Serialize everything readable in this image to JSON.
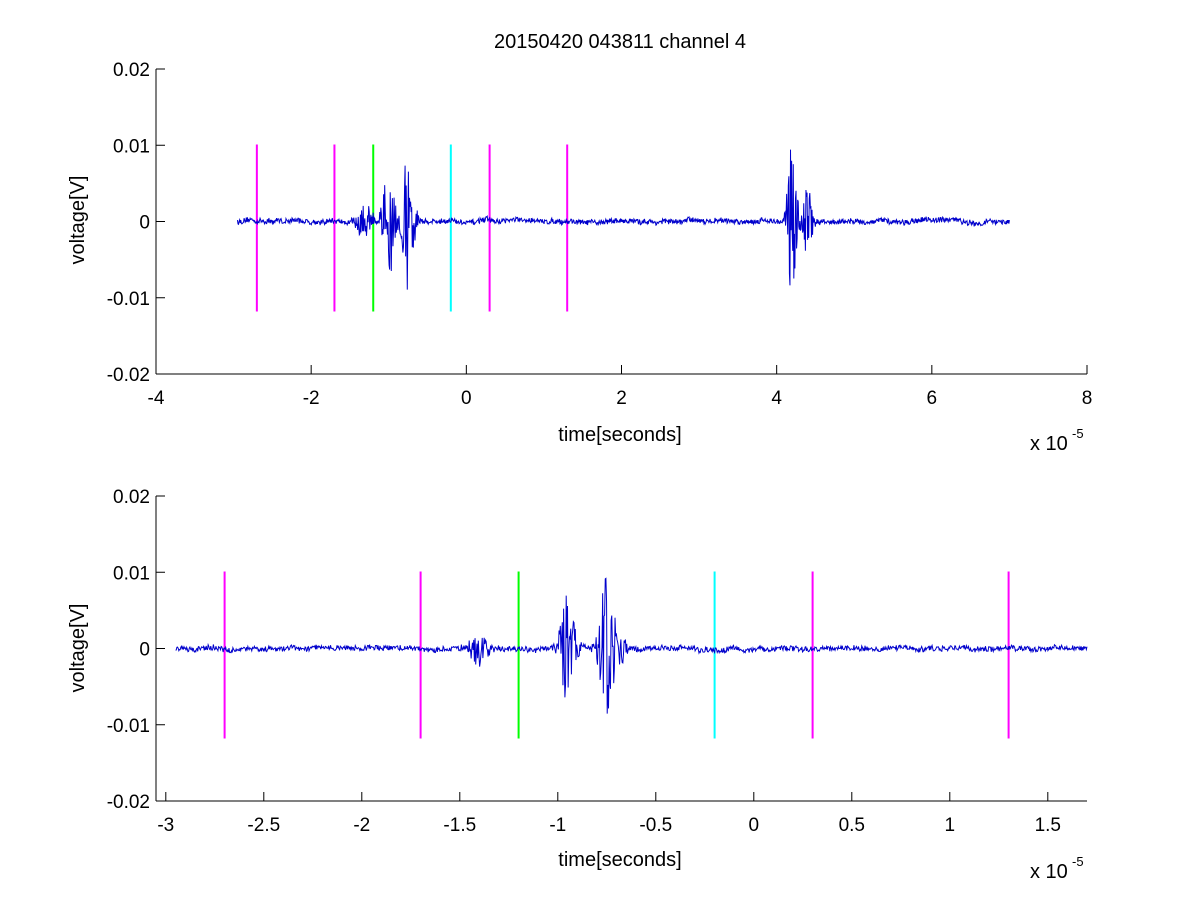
{
  "chart_data": [
    {
      "type": "line",
      "title": "20150420 043811 channel 4",
      "xlabel": "time[seconds]",
      "ylabel": "voltage[V]",
      "x_exponent_label": "x 10",
      "x_exponent": "-5",
      "xlim": [
        -4,
        8
      ],
      "ylim": [
        -0.02,
        0.02
      ],
      "x_ticks": [
        -4,
        -2,
        0,
        2,
        4,
        6,
        8
      ],
      "x_tick_labels": [
        "-4",
        "-2",
        "0",
        "2",
        "4",
        "6",
        "8"
      ],
      "y_ticks": [
        -0.02,
        -0.01,
        0,
        0.01,
        0.02
      ],
      "y_tick_labels": [
        "-0.02",
        "-0.01",
        "0",
        "0.01",
        "0.02"
      ],
      "grid": false,
      "signal": {
        "color": "#0000cc",
        "x_range": [
          -2.95,
          7.0
        ],
        "bursts": [
          {
            "center": -1.3,
            "amplitude": 0.002,
            "width": 0.12
          },
          {
            "center": -1.0,
            "amplitude": 0.007,
            "width": 0.08
          },
          {
            "center": -0.75,
            "amplitude": 0.009,
            "width": 0.08
          },
          {
            "center": 4.2,
            "amplitude": 0.01,
            "width": 0.07
          },
          {
            "center": 4.4,
            "amplitude": 0.005,
            "width": 0.06
          }
        ]
      },
      "markers": [
        {
          "x": -2.7,
          "color": "#ff00ff"
        },
        {
          "x": -1.7,
          "color": "#ff00ff"
        },
        {
          "x": -1.2,
          "color": "#00ff00"
        },
        {
          "x": -0.2,
          "color": "#00ffff"
        },
        {
          "x": 0.3,
          "color": "#ff00ff"
        },
        {
          "x": 1.3,
          "color": "#ff00ff"
        }
      ],
      "marker_y_range": [
        -0.0118,
        0.0101
      ]
    },
    {
      "type": "line",
      "title": "",
      "xlabel": "time[seconds]",
      "ylabel": "voltage[V]",
      "x_exponent_label": "x 10",
      "x_exponent": "-5",
      "xlim": [
        -3.05,
        1.7
      ],
      "ylim": [
        -0.02,
        0.02
      ],
      "x_ticks": [
        -3,
        -2.5,
        -2,
        -1.5,
        -1,
        -0.5,
        0,
        0.5,
        1,
        1.5
      ],
      "x_tick_labels": [
        "-3",
        "-2.5",
        "-2",
        "-1.5",
        "-1",
        "-0.5",
        "0",
        "0.5",
        "1",
        "1.5"
      ],
      "y_ticks": [
        -0.02,
        -0.01,
        0,
        0.01,
        0.02
      ],
      "y_tick_labels": [
        "-0.02",
        "-0.01",
        "0",
        "0.01",
        "0.02"
      ],
      "grid": false,
      "signal": {
        "color": "#0000cc",
        "x_range": [
          -2.95,
          1.7
        ],
        "bursts": [
          {
            "center": -1.4,
            "amplitude": 0.002,
            "width": 0.06
          },
          {
            "center": -0.95,
            "amplitude": 0.007,
            "width": 0.04
          },
          {
            "center": -0.75,
            "amplitude": 0.009,
            "width": 0.04
          },
          {
            "center": -0.68,
            "amplitude": 0.002,
            "width": 0.03
          }
        ]
      },
      "markers": [
        {
          "x": -2.7,
          "color": "#ff00ff"
        },
        {
          "x": -1.7,
          "color": "#ff00ff"
        },
        {
          "x": -1.2,
          "color": "#00ff00"
        },
        {
          "x": -0.2,
          "color": "#00ffff"
        },
        {
          "x": 0.3,
          "color": "#ff00ff"
        },
        {
          "x": 1.3,
          "color": "#ff00ff"
        }
      ],
      "marker_y_range": [
        -0.0118,
        0.0101
      ]
    }
  ]
}
